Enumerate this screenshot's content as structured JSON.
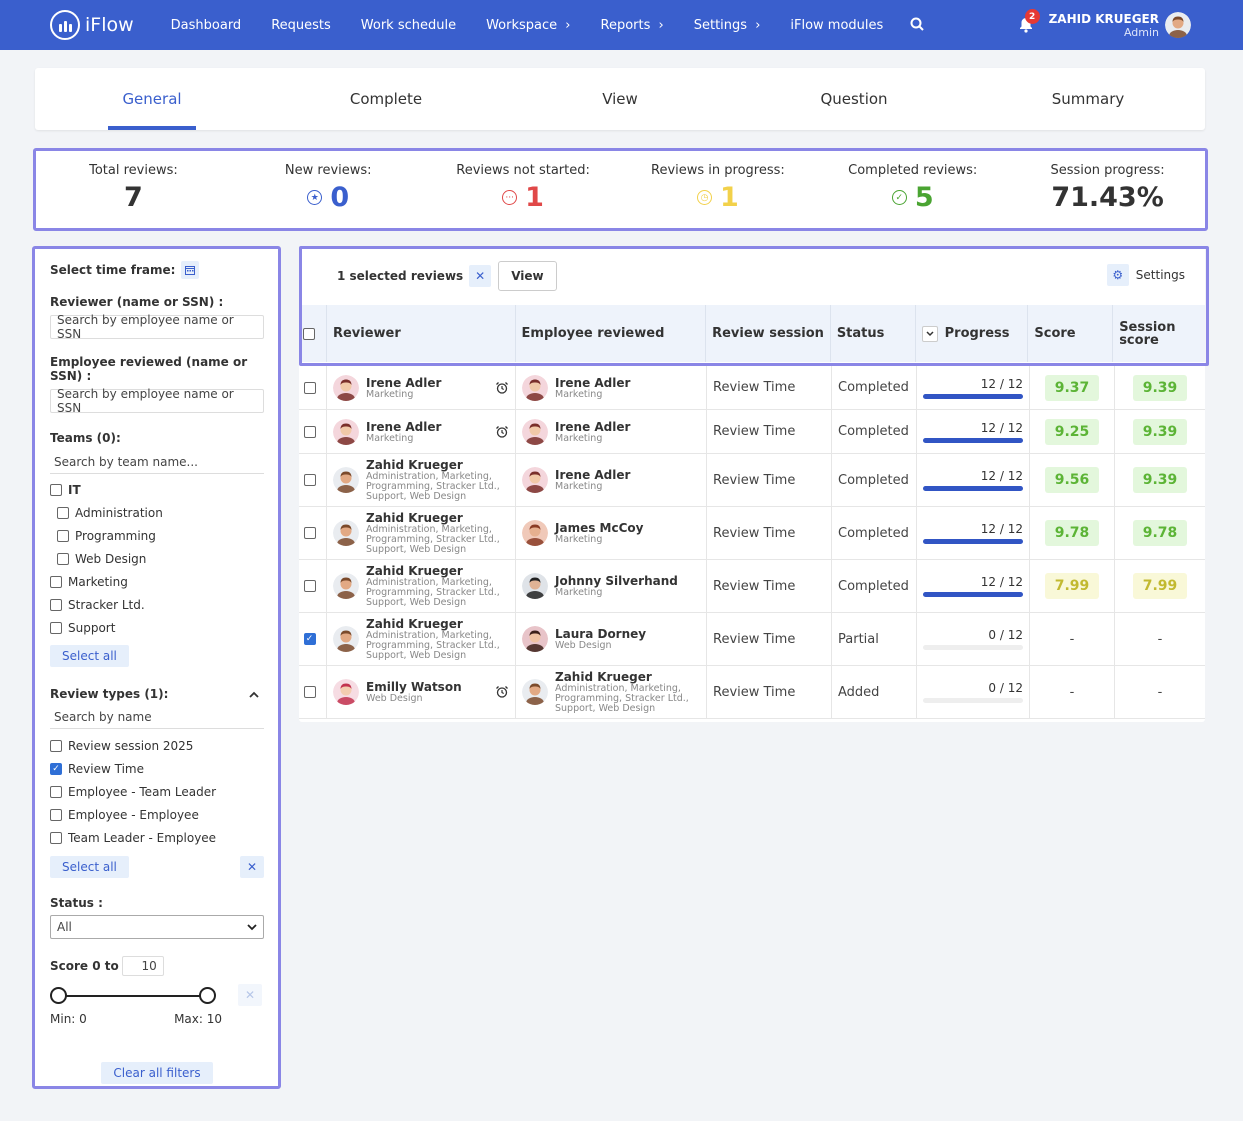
{
  "app": {
    "name": "iFlow"
  },
  "nav": {
    "items": [
      "Dashboard",
      "Requests",
      "Work schedule",
      "Workspace",
      "Reports",
      "Settings",
      "iFlow modules"
    ],
    "chevrons": [
      "",
      "",
      "",
      "›",
      "›",
      "›",
      ""
    ],
    "notifications": "2",
    "user_name": "ZAHID KRUEGER",
    "user_role": "Admin"
  },
  "tabs": [
    "General",
    "Complete",
    "View",
    "Question",
    "Summary"
  ],
  "stats": [
    {
      "label": "Total reviews:",
      "value": "7",
      "color": "#333333",
      "icon": ""
    },
    {
      "label": "New reviews:",
      "value": "0",
      "color": "#3a5fcd",
      "icon": "star-circle-icon"
    },
    {
      "label": "Reviews not started:",
      "value": "1",
      "color": "#e04848",
      "icon": "dots-circle-icon"
    },
    {
      "label": "Reviews in progress:",
      "value": "1",
      "color": "#f2d14a",
      "icon": "clock-circle-icon"
    },
    {
      "label": "Completed reviews:",
      "value": "5",
      "color": "#4aa432",
      "icon": "check-circle-icon"
    },
    {
      "label": "Session progress:",
      "value": "71.43%",
      "color": "#333333",
      "icon": ""
    }
  ],
  "filters": {
    "time_frame": "Select time frame:",
    "reviewer_label": "Reviewer (name or SSN) :",
    "reviewer_placeholder": "Search by employee name or SSN",
    "employee_label": "Employee reviewed (name or SSN) :",
    "employee_placeholder": "Search by employee name or SSN",
    "teams_label": "Teams (0):",
    "teams_search": "Search by team name...",
    "teams": [
      {
        "label": "IT",
        "checked": false,
        "indent": false,
        "bold": true
      },
      {
        "label": "Administration",
        "checked": false,
        "indent": true,
        "bold": false
      },
      {
        "label": "Programming",
        "checked": false,
        "indent": true,
        "bold": false
      },
      {
        "label": "Web Design",
        "checked": false,
        "indent": true,
        "bold": false
      },
      {
        "label": "Marketing",
        "checked": false,
        "indent": false,
        "bold": false
      },
      {
        "label": "Stracker Ltd.",
        "checked": false,
        "indent": false,
        "bold": false
      },
      {
        "label": "Support",
        "checked": false,
        "indent": false,
        "bold": false
      }
    ],
    "select_all": "Select all",
    "review_types_label": "Review types (1):",
    "review_types_search": "Search by name",
    "review_types": [
      {
        "label": "Review session 2025",
        "checked": false
      },
      {
        "label": "Review Time",
        "checked": true
      },
      {
        "label": "Employee - Team Leader",
        "checked": false
      },
      {
        "label": "Employee - Employee",
        "checked": false
      },
      {
        "label": "Team Leader - Employee",
        "checked": false
      }
    ],
    "status_label": "Status :",
    "status_value": "All",
    "score_label": "Score 0 to",
    "score_max_input": "10",
    "score_min": 0,
    "score_max": 10,
    "min_text": "Min: 0",
    "max_text": "Max: 10",
    "clear_all": "Clear all filters"
  },
  "table": {
    "selected_text": "1 selected reviews",
    "view_button": "View",
    "settings": "Settings",
    "columns": [
      "Reviewer",
      "Employee reviewed",
      "Review session",
      "Status",
      "Progress",
      "Score",
      "Session score"
    ],
    "rows": [
      {
        "reviewer": {
          "name": "Irene Adler",
          "team": "Marketing",
          "av": "f1"
        },
        "alarm": true,
        "employee": {
          "name": "Irene Adler",
          "team": "Marketing",
          "av": "f1"
        },
        "session": "Review Time",
        "status": "Completed",
        "progress": "12 / 12",
        "pct": 1,
        "score": "9.37",
        "session_score": "9.39",
        "tone": "g",
        "checked": false
      },
      {
        "reviewer": {
          "name": "Irene Adler",
          "team": "Marketing",
          "av": "f1"
        },
        "alarm": true,
        "employee": {
          "name": "Irene Adler",
          "team": "Marketing",
          "av": "f1"
        },
        "session": "Review Time",
        "status": "Completed",
        "progress": "12 / 12",
        "pct": 1,
        "score": "9.25",
        "session_score": "9.39",
        "tone": "g",
        "checked": false
      },
      {
        "reviewer": {
          "name": "Zahid Krueger",
          "team": "Administration, Marketing, Programming, Stracker Ltd., Support, Web Design",
          "av": "m1"
        },
        "alarm": false,
        "employee": {
          "name": "Irene Adler",
          "team": "Marketing",
          "av": "f1"
        },
        "session": "Review Time",
        "status": "Completed",
        "progress": "12 / 12",
        "pct": 1,
        "score": "9.56",
        "session_score": "9.39",
        "tone": "g",
        "checked": false
      },
      {
        "reviewer": {
          "name": "Zahid Krueger",
          "team": "Administration, Marketing, Programming, Stracker Ltd., Support, Web Design",
          "av": "m1"
        },
        "alarm": false,
        "employee": {
          "name": "James McCoy",
          "team": "Marketing",
          "av": "m2"
        },
        "session": "Review Time",
        "status": "Completed",
        "progress": "12 / 12",
        "pct": 1,
        "score": "9.78",
        "session_score": "9.78",
        "tone": "g",
        "checked": false
      },
      {
        "reviewer": {
          "name": "Zahid Krueger",
          "team": "Administration, Marketing, Programming, Stracker Ltd., Support, Web Design",
          "av": "m1"
        },
        "alarm": false,
        "employee": {
          "name": "Johnny Silverhand",
          "team": "Marketing",
          "av": "m3"
        },
        "session": "Review Time",
        "status": "Completed",
        "progress": "12 / 12",
        "pct": 1,
        "score": "7.99",
        "session_score": "7.99",
        "tone": "y",
        "checked": false
      },
      {
        "reviewer": {
          "name": "Zahid Krueger",
          "team": "Administration, Marketing, Programming, Stracker Ltd., Support, Web Design",
          "av": "m1"
        },
        "alarm": false,
        "employee": {
          "name": "Laura Dorney",
          "team": "Web Design",
          "av": "f2"
        },
        "session": "Review Time",
        "status": "Partial",
        "progress": "0 / 12",
        "pct": 0,
        "score": "-",
        "session_score": "-",
        "tone": "",
        "checked": true
      },
      {
        "reviewer": {
          "name": "Emilly Watson",
          "team": "Web Design",
          "av": "f3"
        },
        "alarm": true,
        "employee": {
          "name": "Zahid Krueger",
          "team": "Administration, Marketing, Programming, Stracker Ltd., Support, Web Design",
          "av": "m1"
        },
        "session": "Review Time",
        "status": "Added",
        "progress": "0 / 12",
        "pct": 0,
        "score": "-",
        "session_score": "-",
        "tone": "",
        "checked": false
      }
    ]
  }
}
